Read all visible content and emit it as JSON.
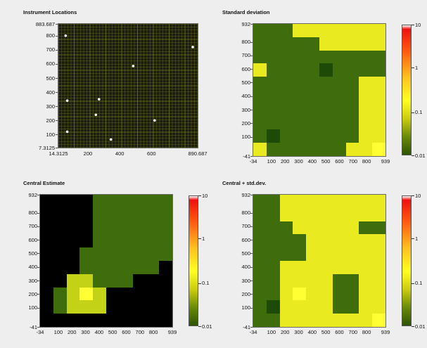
{
  "colors": {
    "grid_bg": "#1b1b0f",
    "grid_line": "#6e7a18",
    "dot": "#ffffff",
    "black": "#000000",
    "darkgreen": "#1e4a08",
    "green": "#3f6d0b",
    "olive": "#7a9a10",
    "yellow_green": "#c3d216",
    "yellow": "#e9ea20",
    "bright_yellow": "#ffff33"
  },
  "scatter": {
    "title": "Instrument Locations",
    "y_ticks": [
      "883.687",
      "800",
      "700",
      "600",
      "500",
      "400",
      "300",
      "200",
      "100",
      "7.3125"
    ],
    "x_ticks": [
      "14.3125",
      "200",
      "400",
      "600",
      "890.687"
    ]
  },
  "heatmaps": {
    "std_title": "Standard deviation",
    "central_title": "Central Estimate",
    "csd_title": "Central + std.dev.",
    "y_ticks": [
      "932",
      "800",
      "700",
      "600",
      "500",
      "400",
      "300",
      "200",
      "100",
      "-41"
    ],
    "x_ticks": [
      "-34",
      "100",
      "200",
      "300",
      "400",
      "500",
      "600",
      "700",
      "800",
      "939"
    ],
    "colorbar_labels": [
      "10",
      "1",
      "0.1",
      "0.01"
    ]
  },
  "chart_data": [
    {
      "type": "scatter",
      "title": "Instrument Locations",
      "xlim": [
        14.3125,
        890.687
      ],
      "ylim": [
        7.3125,
        883.687
      ],
      "points": [
        {
          "x": 60,
          "y": 800
        },
        {
          "x": 70,
          "y": 340
        },
        {
          "x": 70,
          "y": 120
        },
        {
          "x": 250,
          "y": 240
        },
        {
          "x": 270,
          "y": 350
        },
        {
          "x": 345,
          "y": 65
        },
        {
          "x": 485,
          "y": 585
        },
        {
          "x": 620,
          "y": 200
        },
        {
          "x": 860,
          "y": 720
        }
      ]
    },
    {
      "type": "heatmap",
      "title": "Standard deviation",
      "xlim": [
        -34,
        939
      ],
      "ylim": [
        -41,
        932
      ],
      "color_scale": [
        0.01,
        0.1,
        1,
        10
      ],
      "grid_codes_top_to_bottom": [
        "gggyyyyyyy",
        "gggggyyyyy",
        "gggggggggg",
        "yggggdgggg",
        "ggggggggyy",
        "ggggggggyy",
        "ggggggggyy",
        "ggggggggyy",
        "gdggggggyy",
        "yggggggyyY"
      ]
    },
    {
      "type": "heatmap",
      "title": "Central Estimate",
      "xlim": [
        -34,
        939
      ],
      "ylim": [
        -41,
        932
      ],
      "color_scale": [
        0.01,
        0.1,
        1,
        10
      ],
      "grid_codes_top_to_bottom": [
        "kkkkgggggg",
        "kkkkgggggg",
        "kkkkgggggg",
        "kkkkgggggg",
        "kkkggggggg",
        "kkkggggggk",
        "kkllgggkkk",
        "kglYlkkkkk",
        "kglllkkkkk",
        "kkkkkkkkkk"
      ]
    },
    {
      "type": "heatmap",
      "title": "Central + std.dev.",
      "xlim": [
        -34,
        939
      ],
      "ylim": [
        -41,
        932
      ],
      "color_scale": [
        0.01,
        0.1,
        1,
        10
      ],
      "grid_codes_top_to_bottom": [
        "ggyyyyyyyy",
        "ggyyyyyyyy",
        "gggyyyyygg",
        "ggggyyyyyy",
        "ggggyyyyyy",
        "ggyyyyyyyy",
        "ggyyyyggyy",
        "ggyYyyggyy",
        "gdyyyyggyy",
        "ggyyyyyyyY"
      ]
    }
  ]
}
